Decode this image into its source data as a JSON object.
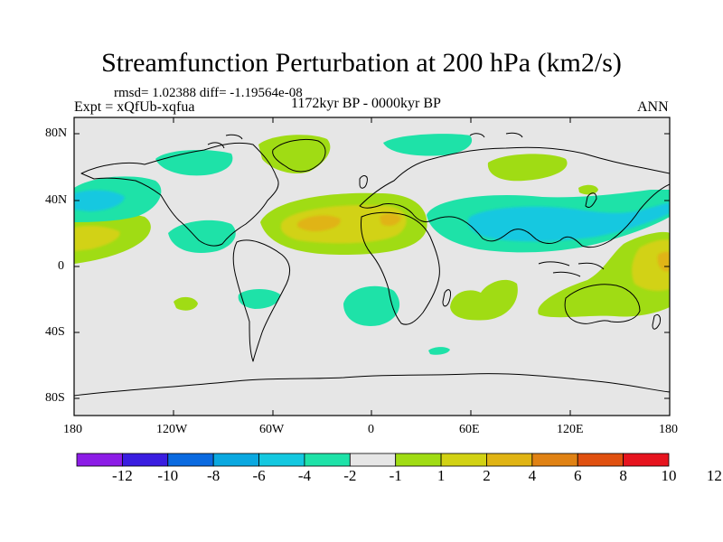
{
  "title": "Streamfunction Perturbation at 200 hPa (km2/s)",
  "stats": "rmsd= 1.02388 diff= -1.19564e-08",
  "experiment": "Expt = xQfUb-xqfua",
  "period": "1172kyr BP - 0000kyr BP",
  "season": "ANN",
  "lat_ticks": [
    "80N",
    "40N",
    "0",
    "40S",
    "80S"
  ],
  "lon_ticks": [
    "180",
    "120W",
    "60W",
    "0",
    "60E",
    "120E",
    "180"
  ],
  "colorbar": {
    "labels": [
      "-12",
      "-10",
      "-8",
      "-6",
      "-4",
      "-2",
      "-1",
      "1",
      "2",
      "4",
      "6",
      "8",
      "10",
      "12"
    ],
    "colors": [
      "#8c1ce6",
      "#3a1de0",
      "#0a6ae0",
      "#0aa8e0",
      "#14c8e0",
      "#1ee2a8",
      "#e6e6e6",
      "#a0dc14",
      "#d2d214",
      "#e0b414",
      "#e08214",
      "#e0500f",
      "#e6141e"
    ]
  },
  "map": {
    "background": "#e6e6e6",
    "coastline": "#000000"
  }
}
